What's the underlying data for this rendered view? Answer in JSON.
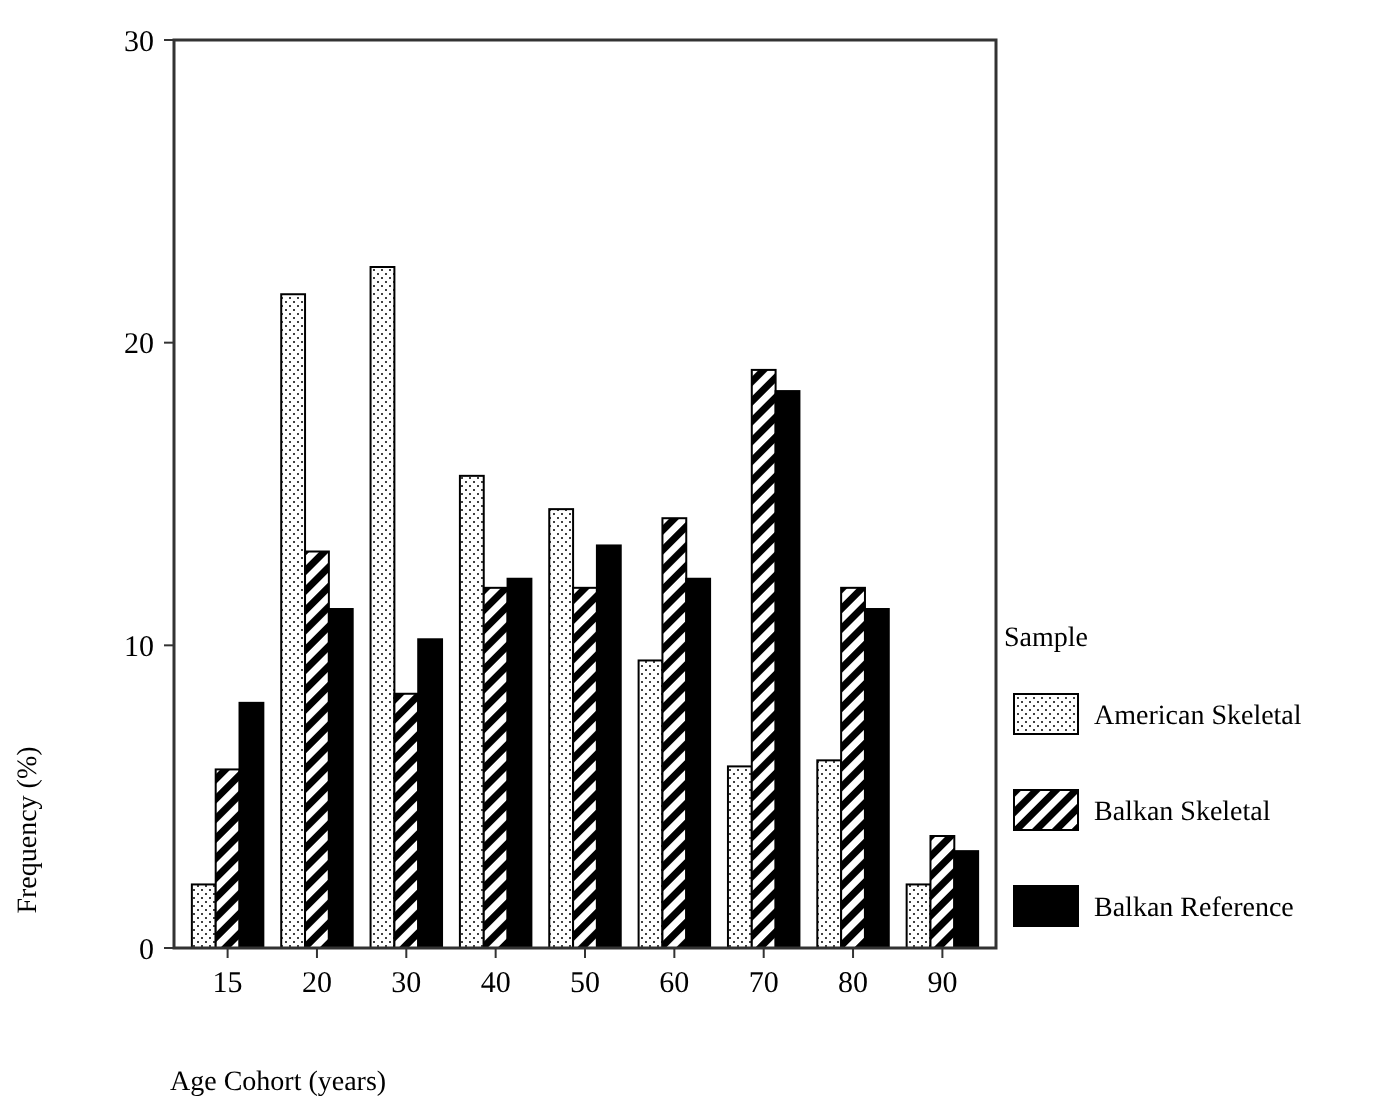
{
  "chart_data": {
    "type": "bar",
    "xlabel": "Age Cohort (years)",
    "ylabel": "Frequency (%)",
    "legend_title": "Sample",
    "categories": [
      "15",
      "20",
      "30",
      "40",
      "50",
      "60",
      "70",
      "80",
      "90"
    ],
    "series": [
      {
        "name": "American Skeletal",
        "color": "#000000",
        "values": [
          2.1,
          21.6,
          22.5,
          15.6,
          14.5,
          9.5,
          6.0,
          6.2,
          2.1
        ]
      },
      {
        "name": "Balkan Skeletal",
        "color": "#000000",
        "values": [
          5.9,
          13.1,
          8.4,
          11.9,
          11.9,
          14.2,
          19.1,
          11.9,
          3.7
        ]
      },
      {
        "name": "Balkan Reference",
        "color": "#000000",
        "values": [
          8.1,
          11.2,
          10.2,
          12.2,
          13.3,
          12.2,
          18.4,
          11.2,
          3.2
        ]
      }
    ],
    "ylim": [
      0,
      30
    ],
    "yticks": [
      0,
      10,
      20,
      30
    ],
    "grid": false,
    "legend": "right"
  }
}
